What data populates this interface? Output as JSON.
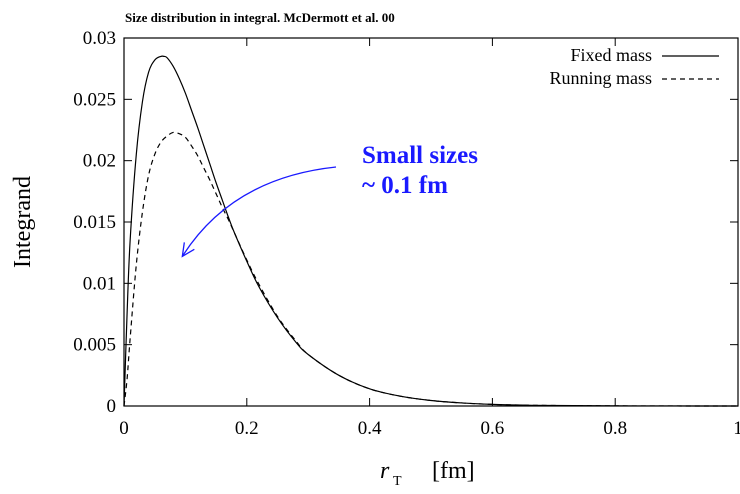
{
  "chart_data": {
    "type": "line",
    "title": "Size distribution in integral. McDermott et al. 00",
    "ylabel": "Integrand",
    "xlabel": {
      "var": "r",
      "sub": "T",
      "unit": "[fm]"
    },
    "xlim": [
      0,
      1
    ],
    "ylim": [
      0,
      0.03
    ],
    "x_ticks": [
      "0",
      "0.2",
      "0.4",
      "0.6",
      "0.8",
      "1"
    ],
    "y_ticks": [
      "0",
      "0.005",
      "0.01",
      "0.015",
      "0.02",
      "0.025",
      "0.03"
    ],
    "grid": false,
    "legend_position": "top-right",
    "series": [
      {
        "name": "Fixed mass",
        "style": "solid",
        "color": "#000000",
        "x": [
          0,
          0.005,
          0.01,
          0.02,
          0.03,
          0.04,
          0.05,
          0.06,
          0.065,
          0.07,
          0.08,
          0.09,
          0.1,
          0.11,
          0.12,
          0.13,
          0.14,
          0.15,
          0.16,
          0.17,
          0.18,
          0.2,
          0.22,
          0.25,
          0.28,
          0.3,
          0.35,
          0.4,
          0.45,
          0.5,
          0.55,
          0.6,
          0.65,
          0.7,
          0.8,
          0.9,
          1.0
        ],
        "y": [
          0,
          0.0075,
          0.0135,
          0.0205,
          0.0248,
          0.0272,
          0.0282,
          0.0285,
          0.0285,
          0.0284,
          0.0277,
          0.0267,
          0.0255,
          0.0241,
          0.0227,
          0.0212,
          0.0197,
          0.0182,
          0.0168,
          0.0154,
          0.0141,
          0.0118,
          0.0097,
          0.0072,
          0.0052,
          0.0042,
          0.0025,
          0.0014,
          0.0008,
          0.00045,
          0.00025,
          0.00013,
          7e-05,
          4e-05,
          1e-05,
          3e-06,
          1e-06
        ]
      },
      {
        "name": "Running mass",
        "style": "dashed",
        "color": "#000000",
        "x": [
          0,
          0.005,
          0.01,
          0.02,
          0.03,
          0.04,
          0.05,
          0.06,
          0.07,
          0.08,
          0.09,
          0.1,
          0.11,
          0.12,
          0.13,
          0.14,
          0.15,
          0.16,
          0.17,
          0.18,
          0.2,
          0.22,
          0.25,
          0.28,
          0.3,
          0.35,
          0.4,
          0.45,
          0.5,
          0.55,
          0.6,
          0.65,
          0.7,
          0.8,
          0.9,
          1.0
        ],
        "y": [
          0,
          0.0022,
          0.0055,
          0.0115,
          0.0158,
          0.0188,
          0.0205,
          0.0215,
          0.022,
          0.0223,
          0.0222,
          0.0219,
          0.0212,
          0.0204,
          0.0194,
          0.0184,
          0.0173,
          0.0162,
          0.0152,
          0.0141,
          0.0119,
          0.0099,
          0.0073,
          0.0053,
          0.0042,
          0.0025,
          0.0014,
          0.0008,
          0.00045,
          0.00025,
          0.00013,
          7e-05,
          4e-05,
          1e-05,
          3e-06,
          1e-06
        ]
      }
    ],
    "annotation": {
      "lines": [
        "Small sizes",
        "~ 0.1 fm"
      ],
      "color": "#1a1aff",
      "arrow_tip_data": [
        0.095,
        0.0122
      ]
    }
  }
}
